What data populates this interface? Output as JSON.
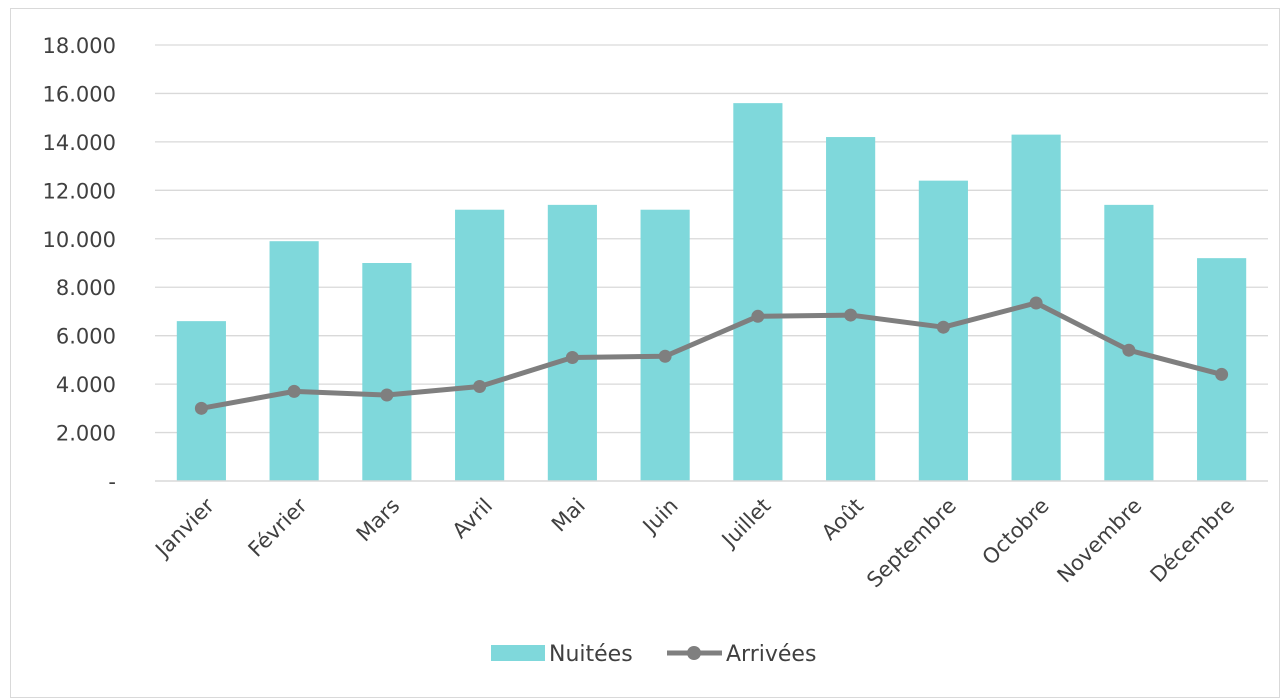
{
  "chart_data": {
    "type": "bar",
    "categories": [
      "Janvier",
      "Février",
      "Mars",
      "Avril",
      "Mai",
      "Juin",
      "Juillet",
      "Août",
      "Septembre",
      "Octobre",
      "Novembre",
      "Décembre"
    ],
    "series": [
      {
        "name": "Nuitées",
        "type": "bar",
        "color": "#7fd8db",
        "values": [
          6600,
          9900,
          9000,
          11200,
          11400,
          11200,
          15600,
          14200,
          12400,
          14300,
          11400,
          9200
        ]
      },
      {
        "name": "Arrivées",
        "type": "line",
        "color": "#7f7f7f",
        "values": [
          3000,
          3700,
          3550,
          3900,
          5100,
          5150,
          6800,
          6850,
          6350,
          7350,
          5400,
          4400
        ]
      }
    ],
    "ylim": [
      0,
      18000
    ],
    "yticks": [
      0,
      2000,
      4000,
      6000,
      8000,
      10000,
      12000,
      14000,
      16000,
      18000
    ],
    "ytick_labels": [
      "-",
      "2.000",
      "4.000",
      "6.000",
      "8.000",
      "10.000",
      "12.000",
      "14.000",
      "16.000",
      "18.000"
    ],
    "grid": true,
    "legend": "bottom"
  }
}
